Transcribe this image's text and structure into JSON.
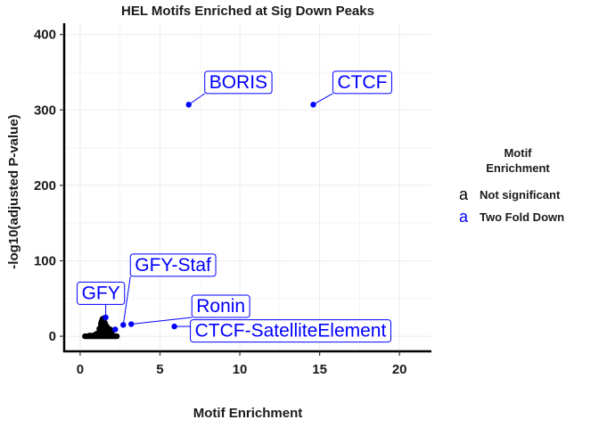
{
  "chart_data": {
    "type": "scatter",
    "title": "HEL Motifs Enriched at Sig Down Peaks",
    "xlabel": "Motif Enrichment",
    "ylabel": "-log10(adjusted P-value)",
    "xlim": [
      -1,
      22
    ],
    "ylim": [
      -20,
      415
    ],
    "xticks": [
      0,
      5,
      10,
      15,
      20
    ],
    "yticks": [
      0,
      100,
      200,
      300,
      400
    ],
    "grid": true,
    "legend": {
      "title_line1": "Motif",
      "title_line2": "Enrichment",
      "placement": "right",
      "key_glyph": "a",
      "entries": [
        {
          "label": "Not significant",
          "color": "#000000"
        },
        {
          "label": "Two Fold Down",
          "color": "#0000ff"
        }
      ]
    },
    "colors": {
      "not_significant": "#000000",
      "two_fold_down": "#0000ff"
    },
    "series": [
      {
        "name": "Not significant",
        "color": "#000000",
        "points": [
          [
            0.3,
            0
          ],
          [
            0.4,
            0
          ],
          [
            0.5,
            0
          ],
          [
            0.6,
            0
          ],
          [
            0.7,
            0
          ],
          [
            0.8,
            0
          ],
          [
            0.9,
            0
          ],
          [
            1.0,
            0
          ],
          [
            1.1,
            0
          ],
          [
            1.2,
            0
          ],
          [
            1.3,
            0
          ],
          [
            1.4,
            0
          ],
          [
            1.5,
            0
          ],
          [
            1.6,
            0
          ],
          [
            1.7,
            0
          ],
          [
            1.8,
            0
          ],
          [
            1.9,
            0
          ],
          [
            2.0,
            0
          ],
          [
            2.1,
            0
          ],
          [
            2.2,
            0
          ],
          [
            2.3,
            0
          ],
          [
            0.6,
            1
          ],
          [
            0.8,
            1
          ],
          [
            1.0,
            1
          ],
          [
            1.2,
            1
          ],
          [
            1.4,
            2
          ],
          [
            1.6,
            1
          ],
          [
            1.8,
            1
          ],
          [
            1.0,
            3
          ],
          [
            1.1,
            4
          ],
          [
            1.2,
            5
          ],
          [
            1.3,
            6
          ],
          [
            1.4,
            7
          ],
          [
            1.5,
            8
          ],
          [
            1.6,
            9
          ],
          [
            1.2,
            10
          ],
          [
            1.3,
            11
          ],
          [
            1.4,
            12
          ],
          [
            1.5,
            13
          ],
          [
            1.3,
            14
          ],
          [
            1.4,
            15
          ],
          [
            1.3,
            17
          ],
          [
            1.4,
            18
          ],
          [
            1.35,
            20
          ],
          [
            1.45,
            21
          ],
          [
            1.4,
            23
          ],
          [
            1.5,
            24
          ],
          [
            1.7,
            5
          ],
          [
            1.8,
            7
          ],
          [
            1.9,
            9
          ],
          [
            2.0,
            6
          ],
          [
            1.7,
            12
          ],
          [
            1.6,
            15
          ],
          [
            1.55,
            18
          ]
        ]
      },
      {
        "name": "Two Fold Down",
        "color": "#0000ff",
        "points": [
          [
            6.8,
            307
          ],
          [
            14.6,
            307
          ],
          [
            1.6,
            25
          ],
          [
            2.2,
            9
          ],
          [
            2.7,
            15
          ],
          [
            3.2,
            16
          ],
          [
            5.9,
            13
          ]
        ]
      }
    ],
    "annotations": [
      {
        "text": "BORIS",
        "x": 6.8,
        "y": 307
      },
      {
        "text": "CTCF",
        "x": 14.6,
        "y": 307
      },
      {
        "text": "GFY-Staf",
        "x": 2.7,
        "y": 15
      },
      {
        "text": "GFY",
        "x": 1.6,
        "y": 25
      },
      {
        "text": "Ronin",
        "x": 3.2,
        "y": 16
      },
      {
        "text": "CTCF-SatelliteElement",
        "x": 5.9,
        "y": 13
      }
    ]
  }
}
